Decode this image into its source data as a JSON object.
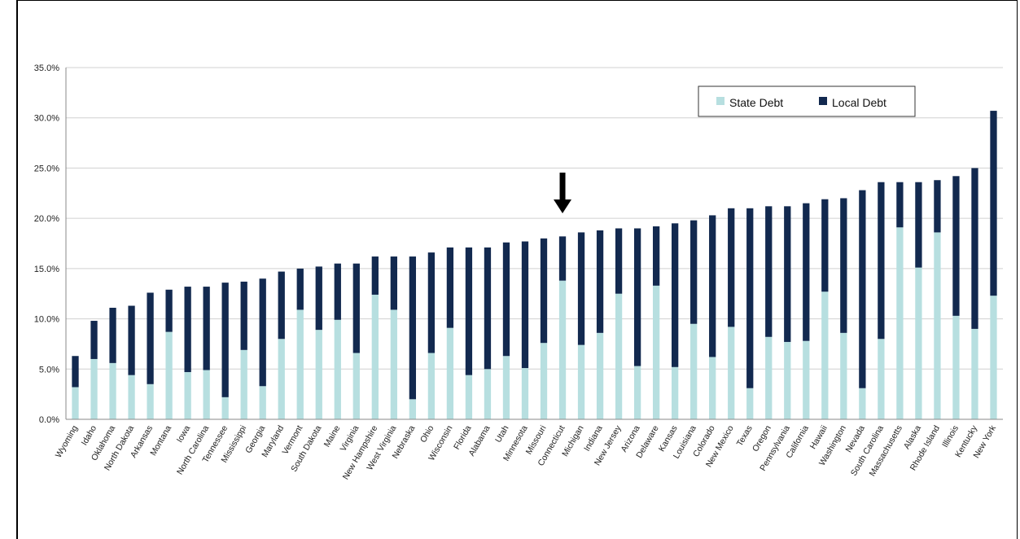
{
  "chart_data": {
    "type": "bar",
    "stacked": true,
    "categories": [
      "Wyoming",
      "Idaho",
      "Oklahoma",
      "North Dakota",
      "Arkansas",
      "Montana",
      "Iowa",
      "North Carolina",
      "Tennessee",
      "Mississippi",
      "Georgia",
      "Maryland",
      "Vermont",
      "South Dakota",
      "Maine",
      "Virginia",
      "New Hampshire",
      "West Virginia",
      "Nebraska",
      "Ohio",
      "Wisconsin",
      "Florida",
      "Alabama",
      "Utah",
      "Minnesota",
      "Missouri",
      "Connecticut",
      "Michigan",
      "Indiana",
      "New Jersey",
      "Arizona",
      "Delaware",
      "Kansas",
      "Louisiana",
      "Colorado",
      "New Mexico",
      "Texas",
      "Oregon",
      "Pennsylvania",
      "California",
      "Hawaii",
      "Washington",
      "Nevada",
      "South Carolina",
      "Massachusetts",
      "Alaska",
      "Rhode Island",
      "Illinois",
      "Kentucky",
      "New York"
    ],
    "series": [
      {
        "name": "State Debt",
        "color": "#b7dfe0",
        "values": [
          3.2,
          6.0,
          5.6,
          4.4,
          3.5,
          8.7,
          4.7,
          4.9,
          2.2,
          6.9,
          3.3,
          8.0,
          10.9,
          8.9,
          9.9,
          6.6,
          12.4,
          10.9,
          2.0,
          6.6,
          9.1,
          4.4,
          5.0,
          6.3,
          5.1,
          7.6,
          13.8,
          7.4,
          8.6,
          12.5,
          5.3,
          13.3,
          5.2,
          9.5,
          6.2,
          9.2,
          3.1,
          8.2,
          7.7,
          7.8,
          12.7,
          8.6,
          3.1,
          8.0,
          19.1,
          15.1,
          18.6,
          10.3,
          9.0,
          12.3
        ]
      },
      {
        "name": "Local Debt",
        "color": "#12294f",
        "values": [
          3.1,
          3.8,
          5.5,
          6.9,
          9.1,
          4.2,
          8.5,
          8.3,
          11.4,
          6.8,
          10.7,
          6.7,
          4.1,
          6.3,
          5.6,
          8.9,
          3.8,
          5.3,
          14.2,
          10.0,
          8.0,
          12.7,
          12.1,
          11.3,
          12.6,
          10.4,
          4.4,
          11.2,
          10.2,
          6.5,
          13.7,
          5.9,
          14.3,
          10.3,
          14.1,
          11.8,
          17.9,
          13.0,
          13.5,
          13.7,
          9.2,
          13.4,
          19.7,
          15.6,
          4.5,
          8.5,
          5.2,
          13.9,
          16.0,
          18.4
        ]
      }
    ],
    "ylim": [
      0,
      35
    ],
    "yticks": [
      "0.0%",
      "5.0%",
      "10.0%",
      "15.0%",
      "20.0%",
      "25.0%",
      "30.0%",
      "35.0%"
    ],
    "grid": true,
    "legend_position": "top-right",
    "annotation": {
      "type": "arrow-down",
      "category": "Connecticut"
    }
  }
}
